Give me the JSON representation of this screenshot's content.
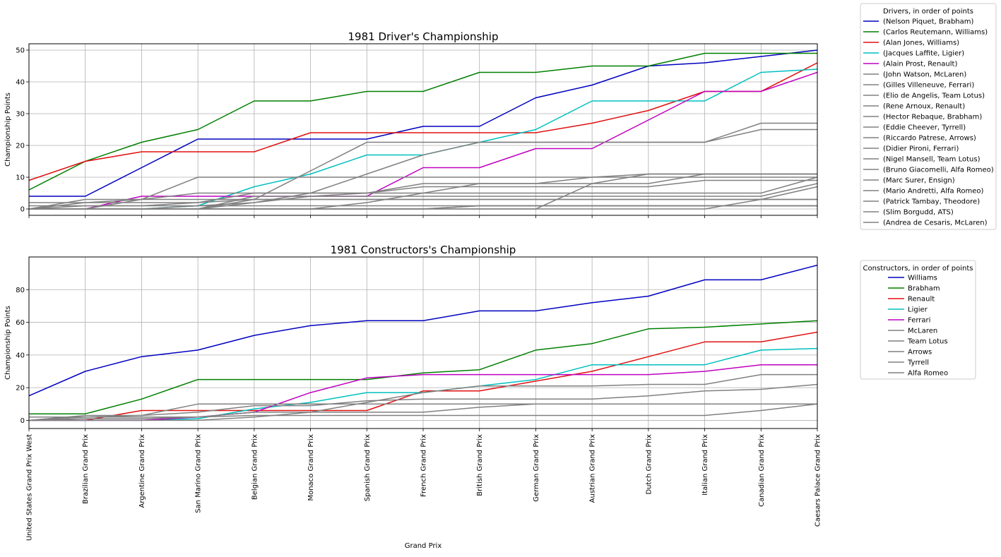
{
  "figure": {
    "xlabel": "Grand Prix"
  },
  "chart_data": [
    {
      "type": "line",
      "title": "1981 Driver's Championship",
      "ylabel": "Championship Points",
      "ylim": [
        -2,
        52
      ],
      "yticks": [
        0,
        10,
        20,
        30,
        40,
        50
      ],
      "grid": true,
      "legend": {
        "title": "Drivers, in order of points",
        "placement": "outside-top-right"
      },
      "categories": [
        "United States Grand Prix West",
        "Brazilian Grand Prix",
        "Argentine Grand Prix",
        "San Marino Grand Prix",
        "Belgian Grand Prix",
        "Monaco Grand Prix",
        "Spanish Grand Prix",
        "French Grand Prix",
        "British Grand Prix",
        "German Grand Prix",
        "Austrian Grand Prix",
        "Dutch Grand Prix",
        "Italian Grand Prix",
        "Canadian Grand Prix",
        "Caesars Palace Grand Prix"
      ],
      "series": [
        {
          "name": "(Nelson Piquet, Brabham)",
          "color": "#0000bf",
          "values": [
            4,
            4,
            13,
            22,
            22,
            22,
            22,
            26,
            26,
            35,
            39,
            45,
            46,
            48,
            50
          ]
        },
        {
          "name": "(Carlos Reutemann, Williams)",
          "color": "#007f00",
          "values": [
            6,
            15,
            21,
            25,
            34,
            34,
            37,
            37,
            43,
            43,
            45,
            45,
            49,
            49,
            49
          ]
        },
        {
          "name": "(Alan Jones, Williams)",
          "color": "#e01010",
          "values": [
            9,
            15,
            18,
            18,
            18,
            24,
            24,
            24,
            24,
            24,
            27,
            31,
            37,
            37,
            46
          ]
        },
        {
          "name": "(Jacques Laffite, Ligier)",
          "color": "#00bfbf",
          "values": [
            0,
            0,
            0,
            1,
            7,
            11,
            17,
            17,
            21,
            25,
            34,
            34,
            34,
            43,
            44
          ]
        },
        {
          "name": "(Alain Prost, Renault)",
          "color": "#bf00bf",
          "values": [
            0,
            0,
            4,
            4,
            4,
            4,
            4,
            13,
            13,
            19,
            19,
            28,
            37,
            37,
            43
          ]
        },
        {
          "name": "(John Watson, McLaren)",
          "color": "#808080",
          "values": [
            0,
            0,
            0,
            0,
            2,
            5,
            11,
            17,
            21,
            21,
            21,
            21,
            21,
            27,
            27
          ]
        },
        {
          "name": "(Gilles Villeneuve, Ferrari)",
          "color": "#808080",
          "values": [
            0,
            0,
            0,
            0,
            3,
            12,
            21,
            21,
            21,
            21,
            21,
            21,
            21,
            25,
            25
          ]
        },
        {
          "name": "(Elio de Angelis, Team Lotus)",
          "color": "#808080",
          "values": [
            0,
            2,
            3,
            5,
            5,
            5,
            5,
            7,
            7,
            7,
            7,
            7,
            9,
            9,
            9
          ]
        },
        {
          "name": "(Rene Arnoux, Renault)",
          "color": "#808080",
          "values": [
            0,
            0,
            0,
            0,
            0,
            0,
            0,
            0,
            0,
            0,
            8,
            8,
            11,
            11,
            11
          ]
        },
        {
          "name": "(Hector Rebaque, Brabham)",
          "color": "#808080",
          "values": [
            0,
            0,
            0,
            0,
            0,
            0,
            2,
            5,
            8,
            8,
            10,
            11,
            11,
            11,
            11
          ]
        },
        {
          "name": "(Eddie Cheever, Tyrrell)",
          "color": "#808080",
          "values": [
            0,
            1,
            1,
            2,
            5,
            5,
            5,
            5,
            5,
            5,
            5,
            5,
            5,
            5,
            10
          ]
        },
        {
          "name": "(Riccardo Patrese, Arrows)",
          "color": "#808080",
          "values": [
            0,
            3,
            3,
            10,
            10,
            10,
            10,
            10,
            10,
            10,
            10,
            10,
            10,
            10,
            10
          ]
        },
        {
          "name": "(Didier Pironi, Ferrari)",
          "color": "#808080",
          "values": [
            0,
            0,
            0,
            1,
            2,
            4,
            5,
            8,
            8,
            8,
            8,
            11,
            11,
            11,
            11
          ]
        },
        {
          "name": "(Nigel Mansell, Team Lotus)",
          "color": "#808080",
          "values": [
            0,
            0,
            0,
            0,
            4,
            4,
            4,
            4,
            4,
            4,
            4,
            4,
            4,
            4,
            8
          ]
        },
        {
          "name": "(Bruno Giacomelli, Alfa Romeo)",
          "color": "#808080",
          "values": [
            0,
            0,
            0,
            0,
            0,
            0,
            0,
            0,
            0,
            0,
            0,
            0,
            0,
            3,
            7
          ]
        },
        {
          "name": "(Marc Surer, Ensign)",
          "color": "#808080",
          "values": [
            0,
            0,
            3,
            3,
            3,
            3,
            3,
            3,
            3,
            3,
            3,
            3,
            3,
            3,
            3
          ]
        },
        {
          "name": "(Mario Andretti, Alfa Romeo)",
          "color": "#808080",
          "values": [
            2,
            2,
            2,
            2,
            3,
            3,
            3,
            3,
            3,
            3,
            3,
            3,
            3,
            3,
            3
          ]
        },
        {
          "name": "(Patrick Tambay, Theodore)",
          "color": "#808080",
          "values": [
            1,
            1,
            1,
            1,
            1,
            1,
            1,
            1,
            1,
            1,
            1,
            1,
            1,
            1,
            1
          ]
        },
        {
          "name": "(Slim Borgudd, ATS)",
          "color": "#808080",
          "values": [
            0,
            0,
            0,
            0,
            0,
            0,
            0,
            0,
            1,
            1,
            1,
            1,
            1,
            1,
            1
          ]
        },
        {
          "name": "(Andrea de Cesaris, McLaren)",
          "color": "#808080",
          "values": [
            0,
            0,
            0,
            0,
            0,
            0,
            0,
            0,
            1,
            1,
            1,
            1,
            1,
            1,
            1
          ]
        }
      ]
    },
    {
      "type": "line",
      "title": "1981 Constructors's Championship",
      "ylabel": "Championship Points",
      "ylim": [
        -5,
        100
      ],
      "yticks": [
        0,
        20,
        40,
        60,
        80
      ],
      "grid": true,
      "legend": {
        "title": "Constructors, in order of points",
        "placement": "outside-right"
      },
      "categories": [
        "United States Grand Prix West",
        "Brazilian Grand Prix",
        "Argentine Grand Prix",
        "San Marino Grand Prix",
        "Belgian Grand Prix",
        "Monaco Grand Prix",
        "Spanish Grand Prix",
        "French Grand Prix",
        "British Grand Prix",
        "German Grand Prix",
        "Austrian Grand Prix",
        "Dutch Grand Prix",
        "Italian Grand Prix",
        "Canadian Grand Prix",
        "Caesars Palace Grand Prix"
      ],
      "series": [
        {
          "name": "Williams",
          "color": "#0000bf",
          "values": [
            15,
            30,
            39,
            43,
            52,
            58,
            61,
            61,
            67,
            67,
            72,
            76,
            86,
            86,
            95
          ]
        },
        {
          "name": "Brabham",
          "color": "#007f00",
          "values": [
            4,
            4,
            13,
            25,
            25,
            25,
            25,
            29,
            31,
            43,
            47,
            56,
            57,
            59,
            61
          ]
        },
        {
          "name": "Renault",
          "color": "#e01010",
          "values": [
            0,
            0,
            6,
            6,
            6,
            6,
            6,
            18,
            18,
            24,
            30,
            39,
            48,
            48,
            54
          ]
        },
        {
          "name": "Ligier",
          "color": "#00bfbf",
          "values": [
            0,
            0,
            0,
            1,
            7,
            11,
            17,
            17,
            21,
            25,
            34,
            34,
            34,
            43,
            44
          ]
        },
        {
          "name": "Ferrari",
          "color": "#bf00bf",
          "values": [
            0,
            0,
            0,
            2,
            5,
            17,
            26,
            28,
            28,
            28,
            28,
            28,
            30,
            34,
            34
          ]
        },
        {
          "name": "McLaren",
          "color": "#808080",
          "values": [
            0,
            0,
            0,
            0,
            2,
            5,
            11,
            17,
            21,
            21,
            21,
            22,
            22,
            28,
            28
          ]
        },
        {
          "name": "Team Lotus",
          "color": "#808080",
          "values": [
            0,
            2,
            3,
            5,
            9,
            9,
            12,
            13,
            13,
            13,
            13,
            15,
            18,
            19,
            22
          ]
        },
        {
          "name": "Arrows",
          "color": "#808080",
          "values": [
            0,
            3,
            3,
            10,
            10,
            10,
            10,
            10,
            10,
            10,
            10,
            10,
            10,
            10,
            10
          ]
        },
        {
          "name": "Tyrrell",
          "color": "#808080",
          "values": [
            0,
            1,
            1,
            2,
            5,
            5,
            5,
            5,
            8,
            10,
            10,
            10,
            10,
            10,
            10
          ]
        },
        {
          "name": "Alfa Romeo",
          "color": "#808080",
          "values": [
            2,
            2,
            2,
            2,
            3,
            3,
            3,
            3,
            3,
            3,
            3,
            3,
            3,
            6,
            10
          ]
        }
      ]
    }
  ]
}
